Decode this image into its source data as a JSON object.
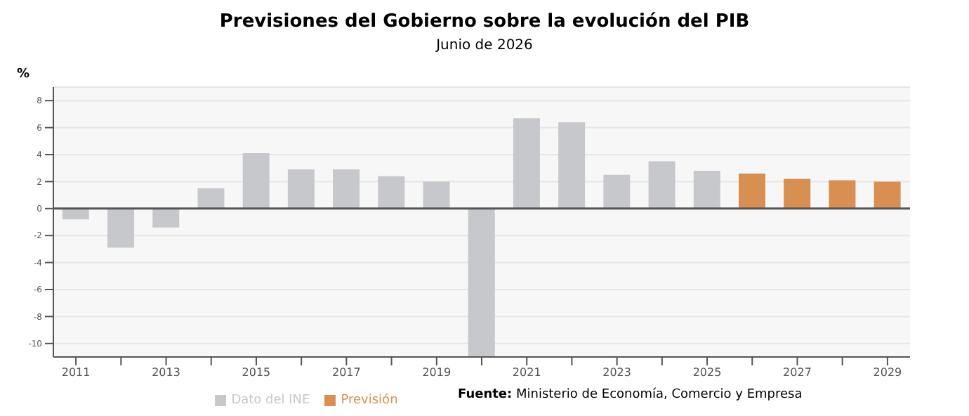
{
  "chart_data": {
    "type": "bar",
    "title": "Previsiones del Gobierno sobre la evolución del PIB",
    "subtitle": "Junio de 2026",
    "ylabel": "%",
    "categories": [
      "2011",
      null,
      "2013",
      null,
      "2015",
      null,
      "2017",
      null,
      "2019",
      null,
      "2021",
      null,
      "2023",
      null,
      "2025",
      null,
      "2027",
      null,
      "2029"
    ],
    "series": [
      {
        "name": "Dato del INE",
        "color": "#c6c8cc",
        "values": [
          -0.8,
          -2.9,
          -1.4,
          1.5,
          4.1,
          2.9,
          2.9,
          2.4,
          2.0,
          -11,
          6.7,
          6.4,
          2.5,
          3.5,
          2.8,
          null,
          null,
          null,
          null
        ]
      },
      {
        "name": "Previsión",
        "color": "#d88f52",
        "values": [
          null,
          null,
          null,
          null,
          null,
          null,
          null,
          null,
          null,
          null,
          null,
          null,
          null,
          null,
          null,
          2.6,
          2.2,
          2.1,
          2.0
        ]
      }
    ],
    "stacked": true,
    "ylim": [
      -11,
      9
    ],
    "yticks": [
      -10,
      -8,
      -6,
      -4,
      -2,
      0,
      2,
      4,
      6,
      8
    ],
    "ref_lines": [
      {
        "axis": "y",
        "value": 0,
        "color": "#555555"
      }
    ],
    "grid": "y",
    "legend": "bottom",
    "annotations": [
      "Fuente: Ministerio de Economía, Comercio y Empresa"
    ]
  }
}
